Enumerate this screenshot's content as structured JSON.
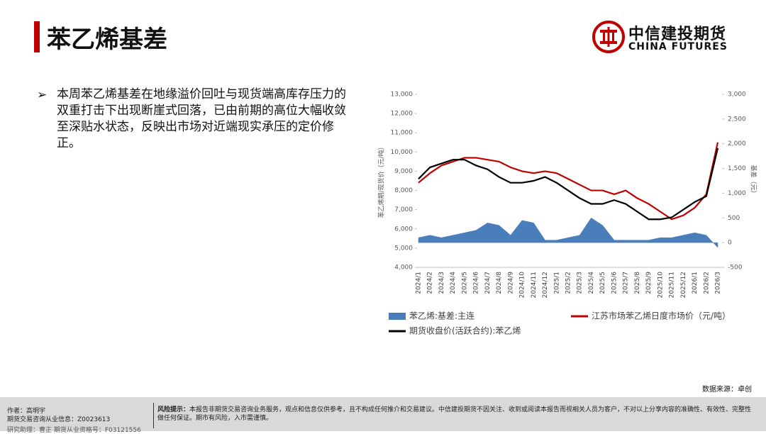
{
  "header": {
    "title": "苯乙烯基差",
    "logo": {
      "name": "中信建投期货",
      "english": "CHINA FUTURES"
    }
  },
  "bullet": "本周苯乙烯基差在地缘溢价回吐与现货端高库存压力的双重打击下出现断崖式回落，已由前期的高位大幅收敛至深贴水状态，反映出市场对近端现实承压的定价修正。",
  "chart_data": {
    "type": "line",
    "ylabel": "苯乙烯期/现货价（元/吨）",
    "y2label": "基差（元）",
    "categories": [
      "2024/1",
      "2024/2",
      "2024/3",
      "2024/4",
      "2024/5",
      "2024/6",
      "2024/7",
      "2024/8",
      "2024/9",
      "2024/10",
      "2024/11",
      "2024/12",
      "2025/1",
      "2025/2",
      "2025/3",
      "2025/4",
      "2025/5",
      "2025/6",
      "2025/7",
      "2025/8",
      "2025/9",
      "2025/10",
      "2025/11",
      "2025/12",
      "2026/1",
      "2026/2",
      "2026/3"
    ],
    "series": [
      {
        "name": "苯乙烯:基差:主连",
        "color": "#4a7ebb",
        "kind": "area",
        "axis": "y2",
        "values": [
          100,
          150,
          100,
          150,
          200,
          250,
          400,
          350,
          150,
          450,
          400,
          50,
          50,
          100,
          150,
          500,
          350,
          50,
          50,
          50,
          50,
          100,
          100,
          150,
          200,
          150,
          -100
        ]
      },
      {
        "name": "江苏市场苯乙烯日度市场价（元/吨）",
        "color": "#c00000",
        "kind": "line",
        "values": [
          8400,
          8900,
          9300,
          9500,
          9700,
          9700,
          9600,
          9500,
          9200,
          9000,
          8900,
          9000,
          8900,
          8600,
          8300,
          8000,
          8000,
          7800,
          8000,
          7600,
          7300,
          6900,
          6500,
          6700,
          7100,
          7800,
          10500
        ]
      },
      {
        "name": "期货收盘价(活跃合约):苯乙烯",
        "color": "#000000",
        "kind": "line",
        "values": [
          8600,
          9200,
          9400,
          9600,
          9600,
          9300,
          9100,
          8700,
          8400,
          8400,
          8500,
          8700,
          8400,
          8000,
          7600,
          7300,
          7300,
          7500,
          7300,
          6900,
          6500,
          6500,
          6600,
          7000,
          7400,
          7700,
          10200
        ]
      }
    ],
    "ylim": [
      4000,
      13000
    ],
    "yticks": [
      {
        "value": 4000,
        "label": "4,000"
      },
      {
        "value": 5000,
        "label": "5,000"
      },
      {
        "value": 6000,
        "label": "6,000"
      },
      {
        "value": 7000,
        "label": "7,000"
      },
      {
        "value": 8000,
        "label": "8,000"
      },
      {
        "value": 9000,
        "label": "9,000"
      },
      {
        "value": 10000,
        "label": "10,000"
      },
      {
        "value": 11000,
        "label": "11,000"
      },
      {
        "value": 12000,
        "label": "12,000"
      },
      {
        "value": 13000,
        "label": "13,000"
      }
    ],
    "y2lim": [
      -500,
      3000
    ],
    "y2ticks": [
      -500,
      0,
      500,
      {
        "value": 1000,
        "label": "1,000"
      },
      {
        "value": 1500,
        "label": "1,500"
      },
      {
        "value": 2000,
        "label": "2,000"
      },
      {
        "value": 2500,
        "label": "2,500"
      },
      {
        "value": 3000,
        "label": "3,000"
      }
    ]
  },
  "source": "数据来源：卓创",
  "footer": {
    "author": "作者：高明宇",
    "license": "期货交易咨询从业信息：Z0023613",
    "assistant": "研究助理：曹正  期货从业资格号：F03121556",
    "risk_label": "风险提示：",
    "risk": "本报告非期货交易咨询业务服务，观点和信息仅供参考，且不构成任何推介和交易建议。中信建投期货不因关注、收到或阅读本报告而视相关人员为客户，不对以上分享内容的准确性、有效性、完整性做任何保证。期市有风险，入市需谨慎。"
  }
}
